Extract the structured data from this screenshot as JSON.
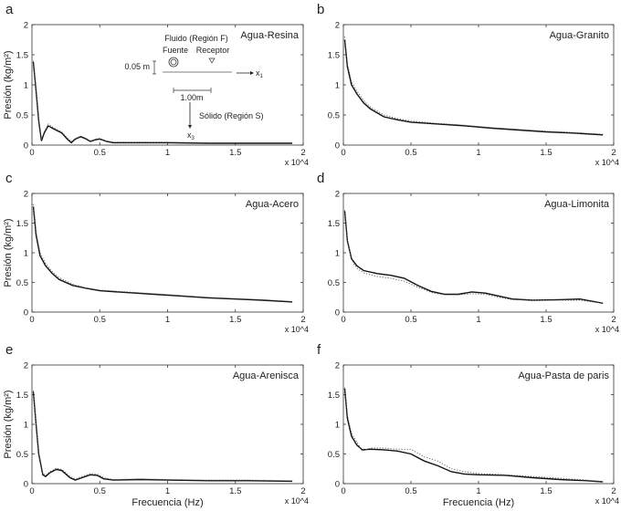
{
  "chart_data": [
    {
      "panel": "a",
      "type": "line",
      "title": "Agua-Resina",
      "ylabel": "Presión (kg/m²)",
      "xlabel": "",
      "xlim": [
        0,
        20000
      ],
      "ylim": [
        0,
        2
      ],
      "x_multiplier": "x 10^4",
      "xticks": [
        "0",
        "0.5",
        "1",
        "1.5",
        "2"
      ],
      "yticks": [
        "0",
        "0.5",
        "1",
        "1.5",
        "2"
      ],
      "series": [
        {
          "style": "solid",
          "x": [
            100,
            300,
            500,
            700,
            900,
            1200,
            1600,
            2200,
            2600,
            2900,
            3200,
            3600,
            4000,
            4300,
            4700,
            5000,
            5500,
            6000,
            8000,
            10000,
            13000,
            16000,
            19200
          ],
          "y": [
            1.38,
            0.9,
            0.4,
            0.07,
            0.2,
            0.32,
            0.27,
            0.2,
            0.1,
            0.04,
            0.1,
            0.14,
            0.1,
            0.06,
            0.09,
            0.1,
            0.06,
            0.04,
            0.04,
            0.04,
            0.03,
            0.03,
            0.03
          ]
        },
        {
          "style": "dotted",
          "x": [
            100,
            300,
            500,
            700,
            900,
            1200,
            1600,
            2200,
            2600,
            2900,
            3200,
            3600,
            4000,
            4300,
            4700,
            5000,
            5500,
            6000,
            8000,
            10000,
            13000,
            16000,
            19200
          ],
          "y": [
            1.4,
            0.92,
            0.42,
            0.09,
            0.22,
            0.35,
            0.29,
            0.22,
            0.12,
            0.06,
            0.11,
            0.15,
            0.11,
            0.07,
            0.1,
            0.11,
            0.07,
            0.05,
            0.05,
            0.05,
            0.04,
            0.04,
            0.04
          ]
        }
      ]
    },
    {
      "panel": "b",
      "type": "line",
      "title": "Agua-Granito",
      "ylabel": "",
      "xlabel": "",
      "xlim": [
        0,
        20000
      ],
      "ylim": [
        0,
        2
      ],
      "x_multiplier": "x 10^4",
      "xticks": [
        "0",
        "0.5",
        "1",
        "1.5",
        "2"
      ],
      "yticks": [
        "0",
        "0.5",
        "1",
        "1.5",
        "2"
      ],
      "series": [
        {
          "style": "solid",
          "x": [
            100,
            300,
            600,
            1000,
            1500,
            2000,
            3000,
            4000,
            5000,
            7000,
            9000,
            11000,
            13000,
            15000,
            17000,
            19200
          ],
          "y": [
            1.75,
            1.3,
            1.0,
            0.85,
            0.7,
            0.6,
            0.47,
            0.42,
            0.38,
            0.35,
            0.32,
            0.28,
            0.25,
            0.22,
            0.2,
            0.17
          ]
        },
        {
          "style": "dotted",
          "x": [
            100,
            300,
            600,
            1000,
            1500,
            2000,
            3000,
            4000,
            5000,
            7000,
            9000,
            11000,
            13000,
            15000,
            17000,
            19200
          ],
          "y": [
            1.8,
            1.35,
            1.05,
            0.9,
            0.74,
            0.63,
            0.5,
            0.44,
            0.4,
            0.36,
            0.33,
            0.29,
            0.26,
            0.23,
            0.21,
            0.18
          ]
        }
      ]
    },
    {
      "panel": "c",
      "type": "line",
      "title": "Agua-Acero",
      "ylabel": "Presión (kg/m²)",
      "xlabel": "",
      "xlim": [
        0,
        20000
      ],
      "ylim": [
        0,
        2
      ],
      "x_multiplier": "x 10^4",
      "xticks": [
        "0",
        "0.5",
        "1",
        "1.5",
        "2"
      ],
      "yticks": [
        "0",
        "0.5",
        "1",
        "1.5",
        "2"
      ],
      "series": [
        {
          "style": "solid",
          "x": [
            100,
            300,
            600,
            1000,
            1500,
            2000,
            3000,
            4000,
            5000,
            7000,
            9000,
            11000,
            13000,
            15000,
            17000,
            19200
          ],
          "y": [
            1.78,
            1.3,
            0.95,
            0.78,
            0.65,
            0.55,
            0.45,
            0.4,
            0.36,
            0.33,
            0.3,
            0.27,
            0.24,
            0.22,
            0.2,
            0.17
          ]
        },
        {
          "style": "dotted",
          "x": [
            100,
            300,
            600,
            1000,
            1500,
            2000,
            3000,
            4000,
            5000,
            7000,
            9000,
            11000,
            13000,
            15000,
            17000,
            19200
          ],
          "y": [
            1.82,
            1.35,
            1.0,
            0.82,
            0.68,
            0.58,
            0.47,
            0.41,
            0.37,
            0.34,
            0.31,
            0.28,
            0.25,
            0.23,
            0.21,
            0.18
          ]
        }
      ]
    },
    {
      "panel": "d",
      "type": "line",
      "title": "Agua-Limonita",
      "ylabel": "",
      "xlabel": "",
      "xlim": [
        0,
        20000
      ],
      "ylim": [
        0,
        2
      ],
      "x_multiplier": "x 10^4",
      "xticks": [
        "0",
        "0.5",
        "1",
        "1.5",
        "2"
      ],
      "yticks": [
        "0",
        "0.5",
        "1",
        "1.5",
        "2"
      ],
      "series": [
        {
          "style": "solid",
          "x": [
            100,
            300,
            600,
            1000,
            1500,
            2500,
            3500,
            4500,
            5500,
            6500,
            7500,
            8500,
            9500,
            10500,
            11500,
            12500,
            14000,
            16000,
            17500,
            19200
          ],
          "y": [
            1.7,
            1.2,
            0.9,
            0.78,
            0.7,
            0.65,
            0.62,
            0.57,
            0.45,
            0.35,
            0.3,
            0.3,
            0.34,
            0.32,
            0.27,
            0.22,
            0.2,
            0.21,
            0.22,
            0.15
          ]
        },
        {
          "style": "dotted",
          "x": [
            100,
            300,
            600,
            1000,
            1500,
            2500,
            3500,
            4500,
            5500,
            6500,
            7500,
            8500,
            9500,
            10500,
            11500,
            12500,
            14000,
            16000,
            17500,
            19200
          ],
          "y": [
            1.72,
            1.22,
            0.88,
            0.74,
            0.66,
            0.6,
            0.57,
            0.52,
            0.42,
            0.33,
            0.29,
            0.29,
            0.31,
            0.3,
            0.25,
            0.21,
            0.2,
            0.2,
            0.2,
            0.15
          ]
        }
      ]
    },
    {
      "panel": "e",
      "type": "line",
      "title": "Agua-Arenisca",
      "ylabel": "Presión (kg/m²)",
      "xlabel": "Frecuencia (Hz)",
      "xlim": [
        0,
        20000
      ],
      "ylim": [
        0,
        2
      ],
      "x_multiplier": "x 10^4",
      "xticks": [
        "0",
        "0.5",
        "1",
        "1.5",
        "2"
      ],
      "yticks": [
        "0",
        "0.5",
        "1",
        "1.5",
        "2"
      ],
      "series": [
        {
          "style": "solid",
          "x": [
            100,
            300,
            500,
            800,
            1000,
            1300,
            1800,
            2200,
            2800,
            3200,
            3700,
            4300,
            4800,
            5300,
            6000,
            8000,
            10000,
            13000,
            16000,
            19200
          ],
          "y": [
            1.55,
            1.0,
            0.5,
            0.15,
            0.12,
            0.18,
            0.24,
            0.22,
            0.1,
            0.06,
            0.1,
            0.15,
            0.14,
            0.08,
            0.06,
            0.07,
            0.06,
            0.05,
            0.05,
            0.04
          ]
        },
        {
          "style": "dotted",
          "x": [
            100,
            300,
            500,
            800,
            1000,
            1300,
            1800,
            2200,
            2800,
            3200,
            3700,
            4300,
            4800,
            5300,
            6000,
            8000,
            10000,
            13000,
            16000,
            19200
          ],
          "y": [
            1.57,
            1.02,
            0.52,
            0.17,
            0.14,
            0.2,
            0.26,
            0.24,
            0.12,
            0.08,
            0.12,
            0.17,
            0.16,
            0.1,
            0.07,
            0.08,
            0.07,
            0.06,
            0.06,
            0.05
          ]
        }
      ]
    },
    {
      "panel": "f",
      "type": "line",
      "title": "Agua-Pasta de paris",
      "ylabel": "",
      "xlabel": "Frecuencia (Hz)",
      "xlim": [
        0,
        20000
      ],
      "ylim": [
        0,
        2
      ],
      "x_multiplier": "x 10^4",
      "xticks": [
        "0",
        "0.5",
        "1",
        "1.5",
        "2"
      ],
      "yticks": [
        "0",
        "0.5",
        "1",
        "1.5",
        "2"
      ],
      "series": [
        {
          "style": "solid",
          "x": [
            100,
            300,
            600,
            1000,
            1400,
            2000,
            3000,
            4000,
            5000,
            6000,
            7000,
            8000,
            9000,
            10000,
            12000,
            14000,
            16000,
            18000,
            19200
          ],
          "y": [
            1.6,
            1.1,
            0.8,
            0.65,
            0.57,
            0.58,
            0.57,
            0.55,
            0.5,
            0.38,
            0.3,
            0.2,
            0.16,
            0.15,
            0.14,
            0.1,
            0.07,
            0.05,
            0.03
          ]
        },
        {
          "style": "dotted",
          "x": [
            100,
            300,
            600,
            1000,
            1400,
            2000,
            3000,
            4000,
            5000,
            6000,
            7000,
            8000,
            9000,
            10000,
            12000,
            14000,
            16000,
            18000,
            19200
          ],
          "y": [
            1.62,
            1.15,
            0.85,
            0.7,
            0.55,
            0.6,
            0.6,
            0.58,
            0.58,
            0.45,
            0.38,
            0.25,
            0.2,
            0.17,
            0.15,
            0.12,
            0.09,
            0.06,
            0.03
          ]
        }
      ]
    }
  ],
  "inset": {
    "fluid": "Fluido (Región F)",
    "source": "Fuente",
    "receiver": "Receptor",
    "height": "0.05 m",
    "distance": "1.00m",
    "solid": "Sólido (Región S)",
    "x1": "x",
    "x1_sub": "1",
    "x3": "x",
    "x3_sub": "3"
  }
}
